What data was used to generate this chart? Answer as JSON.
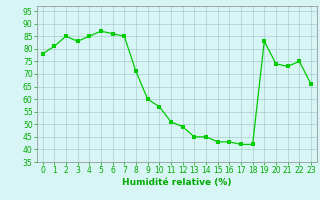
{
  "x": [
    0,
    1,
    2,
    3,
    4,
    5,
    6,
    7,
    8,
    9,
    10,
    11,
    12,
    13,
    14,
    15,
    16,
    17,
    18,
    19,
    20,
    21,
    22,
    23
  ],
  "y": [
    78,
    81,
    85,
    83,
    85,
    87,
    86,
    85,
    71,
    60,
    57,
    51,
    49,
    45,
    45,
    43,
    43,
    42,
    42,
    83,
    74,
    73,
    75,
    66
  ],
  "line_color": "#00cc00",
  "marker_color": "#00cc00",
  "bg_color": "#d8f5f5",
  "grid_color": "#aacccc",
  "xlabel": "Humidité relative (%)",
  "xlabel_color": "#00aa00",
  "tick_color": "#00aa00",
  "ylim": [
    35,
    97
  ],
  "xlim": [
    -0.5,
    23.5
  ],
  "yticks": [
    35,
    40,
    45,
    50,
    55,
    60,
    65,
    70,
    75,
    80,
    85,
    90,
    95
  ],
  "xticks": [
    0,
    1,
    2,
    3,
    4,
    5,
    6,
    7,
    8,
    9,
    10,
    11,
    12,
    13,
    14,
    15,
    16,
    17,
    18,
    19,
    20,
    21,
    22,
    23
  ],
  "tick_fontsize": 5.5,
  "xlabel_fontsize": 6.5
}
